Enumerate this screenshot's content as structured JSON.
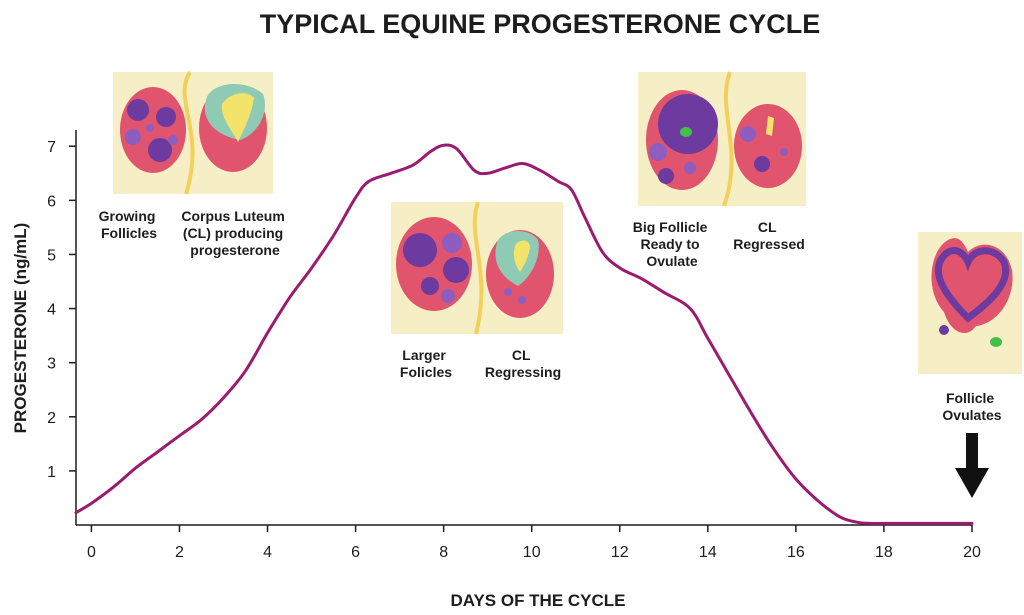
{
  "colors": {
    "line": "#9b1b6f",
    "axis": "#1d1d1d",
    "panel_bg": "#f6efc6",
    "ovary_pink": "#e0546e",
    "ovary_light": "#f07e8c",
    "follicle": "#6d3aa0",
    "follicle_light": "#8d5ec0",
    "cl_teal": "#8fcab4",
    "cl_yellow": "#f3e36a",
    "egg_green": "#41c148",
    "divider": "#f2d05a"
  },
  "chart_data": {
    "type": "line",
    "title": "TYPICAL EQUINE PROGESTERONE CYCLE",
    "xlabel": "DAYS OF THE CYCLE",
    "ylabel": "PROGESTERONE (ng/mL)",
    "xlim": [
      -0.35,
      20
    ],
    "ylim": [
      0,
      7.3
    ],
    "xticks": [
      0,
      2,
      4,
      6,
      8,
      10,
      12,
      14,
      16,
      18,
      20
    ],
    "yticks": [
      1,
      2,
      3,
      4,
      5,
      6,
      7
    ],
    "grid": false,
    "x": [
      -0.35,
      0,
      0.5,
      1,
      1.5,
      2,
      2.5,
      3,
      3.5,
      4,
      4.5,
      5,
      5.5,
      6,
      6.3,
      6.8,
      7.3,
      7.7,
      8,
      8.3,
      8.7,
      9,
      9.4,
      9.8,
      10.2,
      10.6,
      10.9,
      11.2,
      11.6,
      12,
      12.5,
      13,
      13.6,
      14,
      14.5,
      15,
      15.5,
      16,
      16.5,
      17,
      17.4,
      17.7,
      18,
      19,
      20
    ],
    "values": [
      0.23,
      0.4,
      0.7,
      1.05,
      1.35,
      1.65,
      1.95,
      2.35,
      2.85,
      3.55,
      4.2,
      4.75,
      5.35,
      6.05,
      6.35,
      6.5,
      6.65,
      6.9,
      7.02,
      6.95,
      6.55,
      6.5,
      6.6,
      6.68,
      6.55,
      6.35,
      6.2,
      5.7,
      5.05,
      4.75,
      4.55,
      4.3,
      4.0,
      3.45,
      2.75,
      2.05,
      1.4,
      0.85,
      0.45,
      0.15,
      0.05,
      0.03,
      0.03,
      0.03,
      0.03
    ]
  },
  "annotations": [
    {
      "id": "growing-follicles",
      "lines": [
        "Growing",
        "Follicles"
      ]
    },
    {
      "id": "corpus-luteum",
      "lines": [
        "Corpus Luteum",
        "(CL) producing",
        "progesterone"
      ]
    },
    {
      "id": "larger-follicles",
      "lines": [
        "Larger",
        "Folicles"
      ]
    },
    {
      "id": "cl-regressing",
      "lines": [
        "CL",
        "Regressing"
      ]
    },
    {
      "id": "big-follicle",
      "lines": [
        "Big Follicle",
        "Ready to",
        "Ovulate"
      ]
    },
    {
      "id": "cl-regressed",
      "lines": [
        "CL",
        "Regressed"
      ]
    },
    {
      "id": "follicle-ovulates",
      "lines": [
        "Follicle",
        "Ovulates"
      ]
    }
  ],
  "illustrations": [
    {
      "id": "panel-day1",
      "icon": "ovary-illustration-growing-follicles-and-corpus-luteum"
    },
    {
      "id": "panel-day9",
      "icon": "ovary-illustration-larger-follicles-and-cl-regressing"
    },
    {
      "id": "panel-day14",
      "icon": "ovary-illustration-big-follicle-and-cl-regressed"
    },
    {
      "id": "panel-day20",
      "icon": "ovary-illustration-follicle-ovulates"
    },
    {
      "id": "ovulation-arrow",
      "icon": "down-arrow-icon"
    }
  ]
}
